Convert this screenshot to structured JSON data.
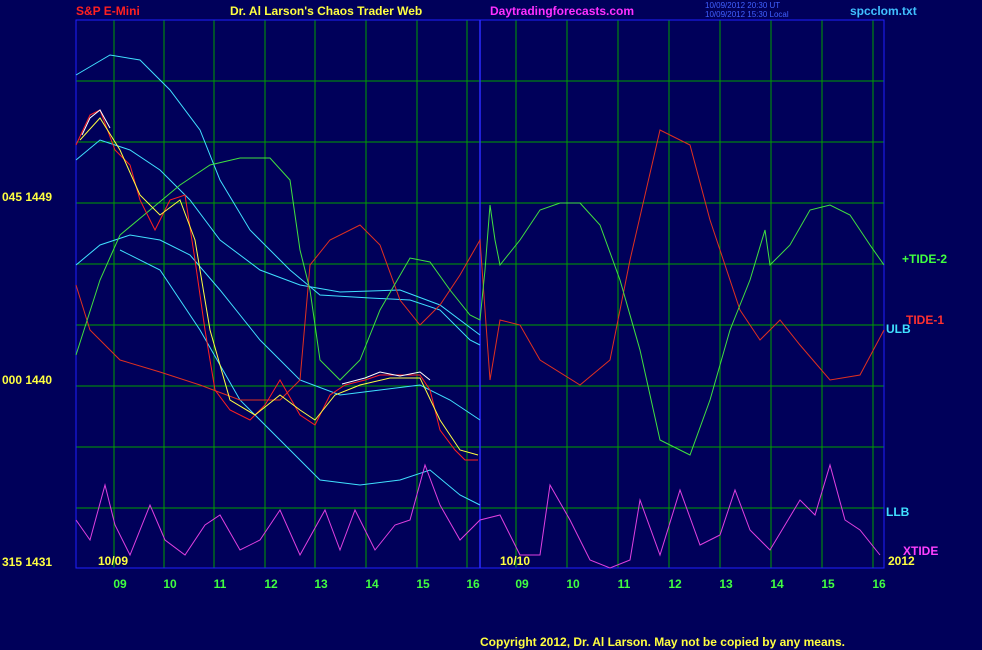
{
  "header": {
    "symbol": "S&P E-Mini",
    "title": "Dr. Al Larson's Chaos Trader Web",
    "site": "Daytradingforecasts.com",
    "timestamp_ut": "10/09/2012 20:30 UT",
    "timestamp_local": "10/09/2012 15:30 Local",
    "file": "spcclom.txt"
  },
  "price_labels": [
    "045 1449",
    "000 1440",
    "315 1431"
  ],
  "date_labels": [
    "10/09",
    "10/10",
    "2012"
  ],
  "hour_labels": [
    "09",
    "10",
    "11",
    "12",
    "13",
    "14",
    "15",
    "16",
    "09",
    "10",
    "11",
    "12",
    "13",
    "14",
    "15",
    "16"
  ],
  "line_labels": {
    "tide2": "+TIDE-2",
    "tide1": "TIDE-1",
    "ulb": "ULB",
    "llb": "LLB",
    "xtide": "XTIDE"
  },
  "footer": "Copyright 2012, Dr. Al Larson. May not be copied by any means."
}
